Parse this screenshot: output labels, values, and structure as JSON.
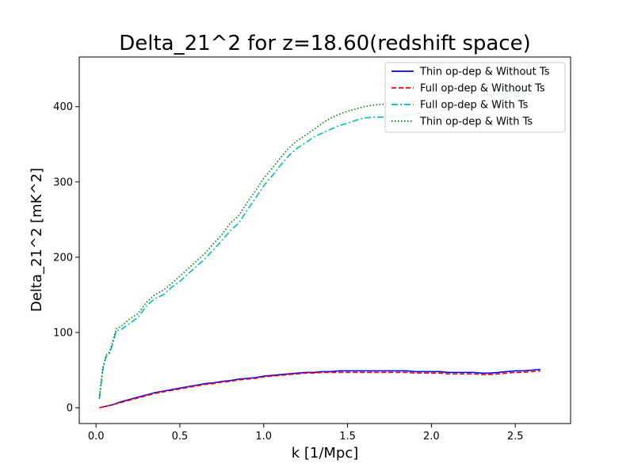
{
  "chart_data": {
    "type": "line",
    "title": "Delta_21^2 for z=18.60(redshift space)",
    "xlabel": "k [1/Mpc]",
    "ylabel": "Delta_21^2 [mK^2]",
    "xlim": [
      -0.1,
      2.83
    ],
    "ylim": [
      -21,
      466
    ],
    "xticks": [
      0.0,
      0.5,
      1.0,
      1.5,
      2.0,
      2.5
    ],
    "xtick_labels": [
      "0.0",
      "0.5",
      "1.0",
      "1.5",
      "2.0",
      "2.5"
    ],
    "yticks": [
      0,
      100,
      200,
      300,
      400
    ],
    "ytick_labels": [
      "0",
      "100",
      "200",
      "300",
      "400"
    ],
    "grid": false,
    "legend_position": "top-right",
    "series": [
      {
        "name": "Thin op-dep & Without Ts",
        "color": "#0000ff",
        "dash": "solid",
        "x": [
          0.02,
          0.06,
          0.1,
          0.15,
          0.2,
          0.25,
          0.3,
          0.35,
          0.4,
          0.45,
          0.5,
          0.55,
          0.6,
          0.65,
          0.7,
          0.75,
          0.8,
          0.85,
          0.9,
          0.95,
          1.0,
          1.05,
          1.1,
          1.15,
          1.2,
          1.25,
          1.3,
          1.35,
          1.4,
          1.45,
          1.5,
          1.55,
          1.6,
          1.65,
          1.7,
          1.75,
          1.8,
          1.85,
          1.9,
          1.95,
          2.0,
          2.05,
          2.1,
          2.15,
          2.2,
          2.25,
          2.3,
          2.35,
          2.4,
          2.45,
          2.5,
          2.55,
          2.6,
          2.65
        ],
        "y": [
          0,
          2,
          4,
          8,
          11,
          14,
          17,
          20,
          22,
          24,
          26,
          28,
          30,
          32,
          33,
          35,
          36,
          38,
          39,
          40,
          42,
          43,
          44,
          45,
          46,
          47,
          47,
          48,
          48,
          49,
          49,
          49,
          49,
          49,
          49,
          49,
          49,
          49,
          48,
          48,
          48,
          48,
          47,
          47,
          47,
          47,
          46,
          46,
          47,
          48,
          49,
          49,
          50,
          51
        ]
      },
      {
        "name": "Full op-dep & Without Ts",
        "color": "#ff0000",
        "dash": "dashed",
        "x": [
          0.02,
          0.06,
          0.1,
          0.15,
          0.2,
          0.25,
          0.3,
          0.35,
          0.4,
          0.45,
          0.5,
          0.55,
          0.6,
          0.65,
          0.7,
          0.75,
          0.8,
          0.85,
          0.9,
          0.95,
          1.0,
          1.05,
          1.1,
          1.15,
          1.2,
          1.25,
          1.3,
          1.35,
          1.4,
          1.45,
          1.5,
          1.55,
          1.6,
          1.65,
          1.7,
          1.75,
          1.8,
          1.85,
          1.9,
          1.95,
          2.0,
          2.05,
          2.1,
          2.15,
          2.2,
          2.25,
          2.3,
          2.35,
          2.4,
          2.45,
          2.5,
          2.55,
          2.6,
          2.65
        ],
        "y": [
          0,
          2,
          4,
          7,
          10,
          13,
          16,
          19,
          21,
          23,
          25,
          27,
          29,
          31,
          32,
          34,
          35,
          37,
          38,
          39,
          41,
          42,
          43,
          44,
          45,
          46,
          46,
          47,
          47,
          47,
          47,
          47,
          47,
          47,
          47,
          47,
          47,
          47,
          46,
          46,
          46,
          46,
          45,
          45,
          45,
          45,
          44,
          44,
          45,
          46,
          47,
          47,
          48,
          49
        ]
      },
      {
        "name": "Full op-dep & With Ts",
        "color": "#00bfbf",
        "dash": "dashdot",
        "x": [
          0.02,
          0.04,
          0.06,
          0.08,
          0.1,
          0.12,
          0.15,
          0.2,
          0.25,
          0.3,
          0.35,
          0.4,
          0.45,
          0.5,
          0.55,
          0.6,
          0.65,
          0.7,
          0.75,
          0.8,
          0.85,
          0.9,
          0.95,
          1.0,
          1.05,
          1.1,
          1.15,
          1.2,
          1.25,
          1.3,
          1.35,
          1.4,
          1.45,
          1.5,
          1.55,
          1.6,
          1.65,
          1.7,
          1.75,
          1.8,
          1.85,
          1.9,
          1.95,
          2.0,
          2.05,
          2.1,
          2.15,
          2.2,
          2.25,
          2.3,
          2.35,
          2.4,
          2.45,
          2.5,
          2.55,
          2.6,
          2.65
        ],
        "y": [
          12,
          50,
          68,
          72,
          85,
          102,
          104,
          112,
          120,
          135,
          145,
          150,
          160,
          168,
          178,
          188,
          198,
          210,
          222,
          235,
          245,
          262,
          278,
          295,
          308,
          322,
          335,
          345,
          352,
          360,
          365,
          370,
          375,
          378,
          382,
          385,
          386,
          386,
          387,
          388,
          389,
          390,
          392,
          393,
          395,
          396,
          398,
          400,
          402,
          405,
          407,
          410,
          412,
          414,
          415,
          417,
          420
        ]
      },
      {
        "name": "Thin op-dep & With Ts",
        "color": "#008000",
        "dash": "dotted",
        "x": [
          0.02,
          0.04,
          0.06,
          0.08,
          0.1,
          0.12,
          0.15,
          0.2,
          0.25,
          0.3,
          0.35,
          0.4,
          0.45,
          0.5,
          0.55,
          0.6,
          0.65,
          0.7,
          0.75,
          0.8,
          0.85,
          0.9,
          0.95,
          1.0,
          1.05,
          1.1,
          1.15,
          1.2,
          1.25,
          1.3,
          1.35,
          1.4,
          1.45,
          1.5,
          1.55,
          1.6,
          1.65,
          1.7,
          1.75,
          1.8,
          1.85,
          1.9,
          1.95,
          2.0,
          2.05,
          2.1,
          2.15,
          2.2,
          2.25,
          2.3,
          2.35,
          2.4,
          2.45,
          2.5,
          2.55,
          2.6,
          2.65
        ],
        "y": [
          12,
          52,
          70,
          74,
          88,
          105,
          108,
          118,
          125,
          140,
          150,
          156,
          165,
          175,
          185,
          195,
          205,
          218,
          230,
          245,
          255,
          272,
          288,
          305,
          318,
          332,
          345,
          355,
          362,
          370,
          378,
          385,
          390,
          394,
          397,
          400,
          402,
          403,
          404,
          405,
          406,
          407,
          408,
          409,
          410,
          411,
          412,
          413,
          414,
          415,
          416,
          417,
          418,
          419,
          420,
          421,
          422
        ]
      }
    ]
  }
}
